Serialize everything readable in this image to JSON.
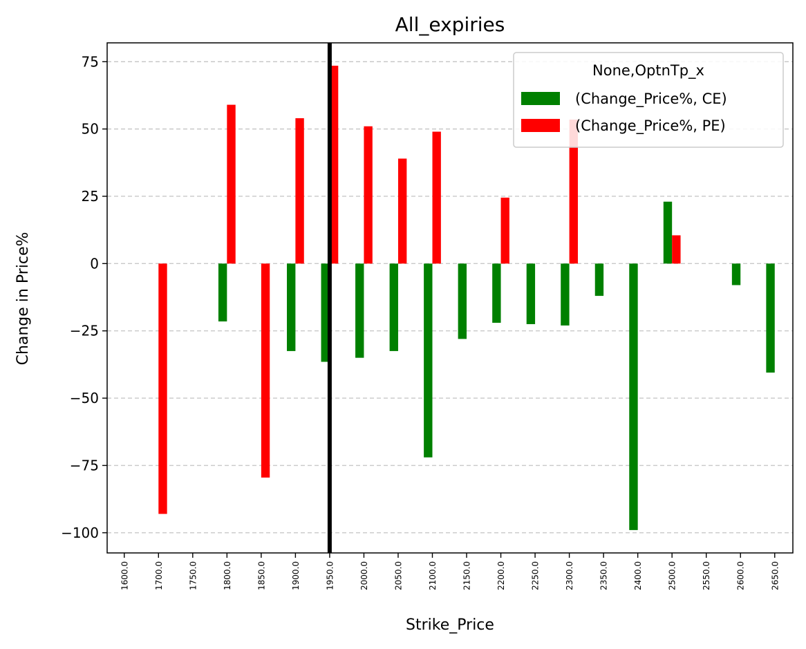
{
  "chart_data": {
    "type": "bar",
    "title": "All_expiries",
    "xlabel": "Strike_Price",
    "ylabel": "Change in Price%",
    "categories": [
      "1600.0",
      "1700.0",
      "1750.0",
      "1800.0",
      "1850.0",
      "1900.0",
      "1950.0",
      "2000.0",
      "2050.0",
      "2100.0",
      "2150.0",
      "2200.0",
      "2250.0",
      "2300.0",
      "2350.0",
      "2400.0",
      "2500.0",
      "2550.0",
      "2600.0",
      "2650.0"
    ],
    "series": [
      {
        "name": "(Change_Price%, CE)",
        "color": "#008000",
        "values": [
          null,
          null,
          null,
          -21.5,
          null,
          -32.5,
          -36.5,
          -35,
          -32.5,
          -72,
          -28,
          -22,
          -22.5,
          -23,
          -12,
          -99,
          23,
          null,
          -8,
          -40.5
        ]
      },
      {
        "name": "(Change_Price%, PE)",
        "color": "#ff0000",
        "values": [
          null,
          -93,
          null,
          59,
          -79.5,
          54,
          73.5,
          51,
          39,
          49,
          null,
          24.5,
          null,
          53.5,
          null,
          null,
          10.5,
          null,
          null,
          null
        ]
      }
    ],
    "yticks": [
      -100,
      -75,
      -50,
      -25,
      0,
      25,
      50,
      75
    ],
    "ytick_labels": [
      "−100",
      "−75",
      "−50",
      "−25",
      "0",
      "25",
      "50",
      "75"
    ],
    "ylim": [
      -107.5,
      82
    ],
    "grid": "y-dashed",
    "legend_title": "None,OptnTp_x",
    "legend_position": "top-right",
    "vline": {
      "category": "1950.0",
      "color": "#000000"
    }
  }
}
